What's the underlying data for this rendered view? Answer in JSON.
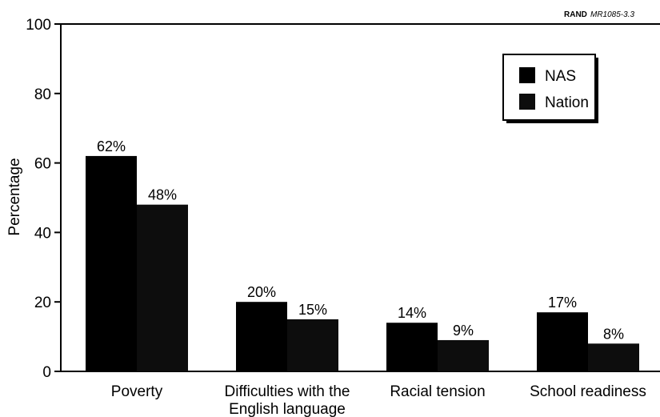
{
  "credit": {
    "org": "RAND",
    "code": "MR1085-3.3"
  },
  "chart_data": {
    "type": "bar",
    "title": "",
    "xlabel": "",
    "ylabel": "Percentage",
    "ylim": [
      0,
      100
    ],
    "yticks": [
      0,
      20,
      40,
      60,
      80,
      100
    ],
    "categories": [
      [
        "Poverty"
      ],
      [
        "Difficulties with the",
        "English language"
      ],
      [
        "Racial tension"
      ],
      [
        "School readiness"
      ]
    ],
    "series": [
      {
        "name": "NAS",
        "values": [
          62,
          20,
          14,
          17
        ],
        "labels": [
          "62%",
          "20%",
          "14%",
          "17%"
        ],
        "color": "#000000"
      },
      {
        "name": "Nation",
        "values": [
          48,
          15,
          9,
          8
        ],
        "labels": [
          "48%",
          "15%",
          "9%",
          "8%"
        ],
        "color": "#0d0d0d"
      }
    ],
    "legend": "top-right",
    "grid": false
  }
}
